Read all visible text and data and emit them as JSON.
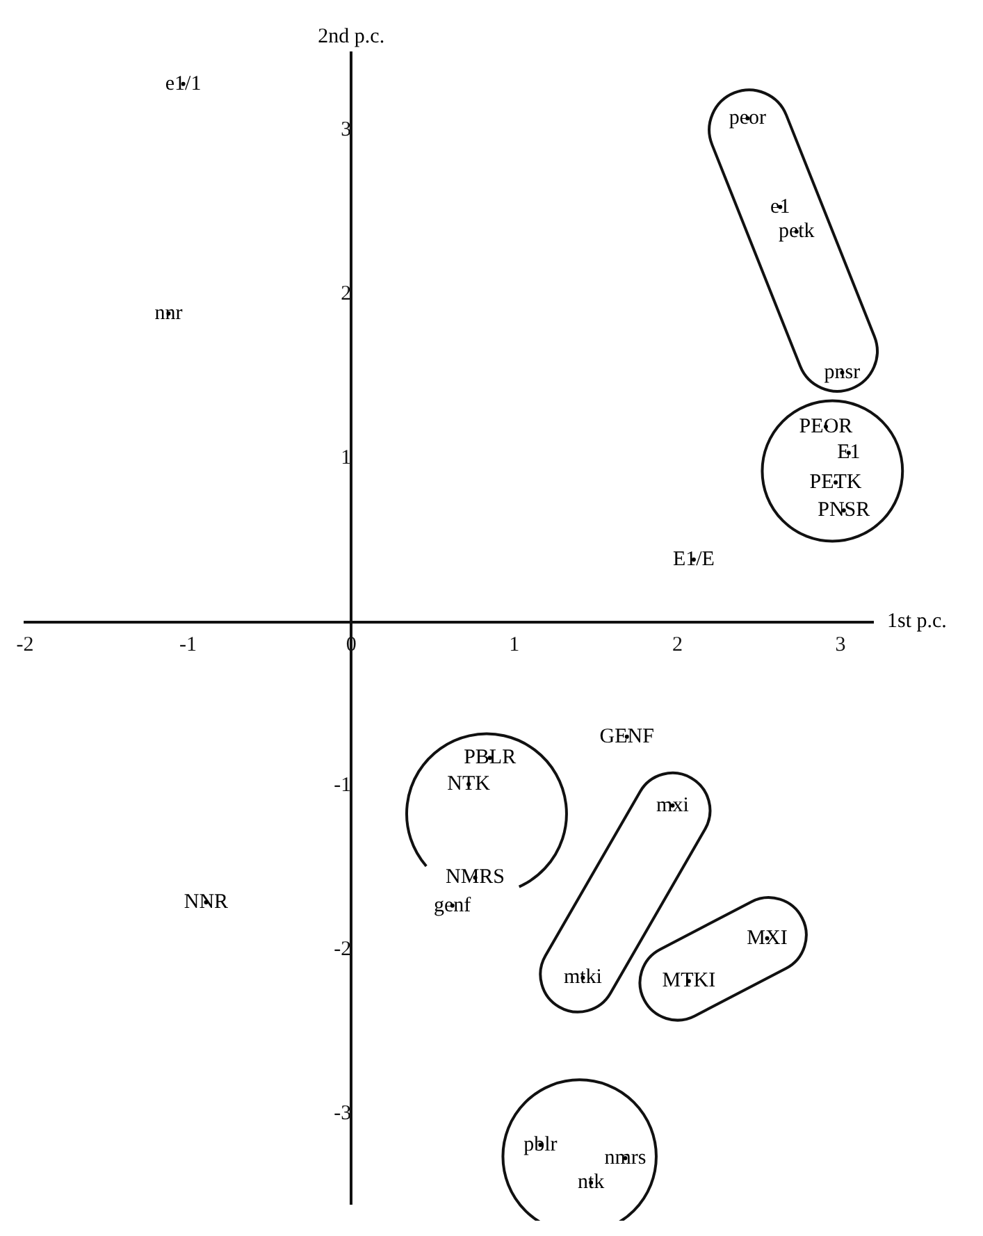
{
  "chart_data": {
    "type": "scatter",
    "xlabel": "1st p.c.",
    "ylabel": "2nd p.c.",
    "xlim": [
      -2,
      3.2
    ],
    "ylim": [
      -3.55,
      3.47
    ],
    "xticks": [
      -2,
      -1,
      0,
      1,
      2,
      3
    ],
    "yticks": [
      -3,
      -2,
      -1,
      1,
      2,
      3
    ],
    "grid": false,
    "legend": false,
    "series": [
      {
        "color": "#000000",
        "x": [
          -1.03,
          -1.12,
          2.43,
          2.63,
          2.73,
          3.01,
          2.91,
          3.05,
          2.97,
          3.02,
          2.1,
          1.69,
          0.85,
          0.72,
          0.76,
          0.62,
          -0.89,
          1.97,
          1.42,
          2.55,
          2.07,
          1.16,
          1.68,
          1.47
        ],
        "values": [
          3.28,
          1.88,
          3.07,
          2.53,
          2.38,
          1.52,
          1.19,
          1.03,
          0.85,
          0.68,
          0.38,
          -0.7,
          -0.83,
          -0.99,
          -1.56,
          -1.73,
          -1.71,
          -1.12,
          -2.17,
          -1.93,
          -2.19,
          -3.19,
          -3.27,
          -3.42
        ],
        "value_labels": [
          "e1/1",
          "nnr",
          "peor",
          "e1",
          "petk",
          "pnsr",
          "PEOR",
          "E1",
          "PETK",
          "PNSR",
          "E1/E",
          "GENF",
          "PBLR",
          "NTK",
          "NMRS",
          "genf",
          "NNR",
          "mxi",
          "mtki",
          "MXI",
          "MTKI",
          "pblr",
          "nmrs",
          "ntk"
        ]
      }
    ]
  }
}
